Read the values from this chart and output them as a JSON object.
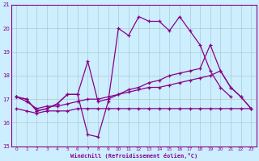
{
  "background_color": "#cceeff",
  "grid_color": "#aacccc",
  "line_color": "#880088",
  "xlabel": "Windchill (Refroidissement éolien,°C)",
  "xlim": [
    -0.5,
    23.5
  ],
  "ylim": [
    15,
    21
  ],
  "yticks": [
    15,
    16,
    17,
    18,
    19,
    20,
    21
  ],
  "xticks": [
    0,
    1,
    2,
    3,
    4,
    5,
    6,
    7,
    8,
    9,
    10,
    11,
    12,
    13,
    14,
    15,
    16,
    17,
    18,
    19,
    20,
    21,
    22,
    23
  ],
  "series": [
    {
      "x": [
        0,
        1,
        2,
        3,
        4,
        5,
        6,
        7,
        8,
        9,
        10,
        11,
        12,
        13,
        14,
        15,
        16,
        17,
        18,
        19,
        20,
        21,
        22,
        23
      ],
      "y": [
        16.6,
        16.5,
        16.4,
        16.5,
        16.5,
        16.5,
        16.6,
        16.6,
        16.6,
        16.6,
        16.6,
        16.6,
        16.6,
        16.6,
        16.6,
        16.6,
        16.6,
        16.6,
        16.6,
        16.6,
        16.6,
        16.6,
        16.6,
        16.6
      ]
    },
    {
      "x": [
        0,
        1,
        2,
        3,
        4,
        5,
        6,
        7,
        8,
        9,
        10,
        11,
        12,
        13,
        14,
        15,
        16,
        17,
        18,
        19,
        20,
        21,
        22,
        23
      ],
      "y": [
        17.1,
        16.9,
        16.6,
        16.7,
        16.7,
        16.8,
        16.9,
        17.0,
        17.0,
        17.1,
        17.2,
        17.3,
        17.4,
        17.5,
        17.5,
        17.6,
        17.7,
        17.8,
        17.9,
        18.0,
        18.2,
        17.5,
        17.1,
        16.6
      ]
    },
    {
      "x": [
        0,
        1,
        2,
        3,
        4,
        5,
        6,
        7,
        8,
        9,
        10,
        11,
        12,
        13,
        14,
        15,
        16,
        17,
        18,
        19,
        20,
        21
      ],
      "y": [
        17.1,
        17.0,
        16.5,
        16.6,
        16.8,
        17.2,
        17.2,
        15.5,
        15.4,
        16.9,
        20.0,
        19.7,
        20.5,
        20.3,
        20.3,
        19.9,
        20.5,
        19.9,
        19.3,
        18.2,
        17.5,
        17.1
      ]
    },
    {
      "x": [
        0,
        1,
        2,
        3,
        4,
        5,
        6,
        7,
        8,
        9,
        10,
        11,
        12,
        13,
        14,
        15,
        16,
        17,
        18,
        19,
        20,
        21,
        22,
        23
      ],
      "y": [
        17.1,
        17.0,
        16.5,
        16.6,
        16.8,
        17.2,
        17.2,
        18.6,
        16.9,
        17.0,
        17.2,
        17.4,
        17.5,
        17.7,
        17.8,
        18.0,
        18.1,
        18.2,
        18.3,
        19.3,
        18.2,
        17.5,
        17.1,
        16.6
      ]
    }
  ]
}
